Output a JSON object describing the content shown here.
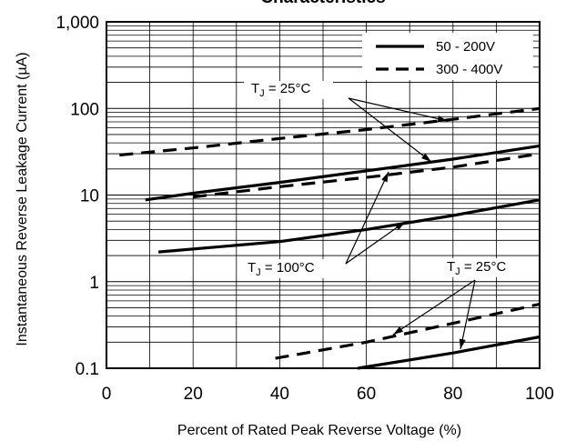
{
  "chart_data": {
    "type": "line",
    "title": "Characteristics",
    "xlabel": "Percent of Rated Peak Reverse Voltage (%)",
    "ylabel": "Instantaneous Reverse Leakage Current (µA)",
    "xlim": [
      0,
      100
    ],
    "ylim": [
      0.1,
      1000
    ],
    "yscale": "log",
    "grid": true,
    "x_ticks": [
      0,
      20,
      40,
      60,
      80,
      100
    ],
    "x_tick_labels": [
      "0",
      "20",
      "40",
      "60",
      "80",
      "100"
    ],
    "y_ticks": [
      0.1,
      1,
      10,
      100,
      1000
    ],
    "y_tick_labels": [
      "0.1",
      "1",
      "10",
      "100",
      "1,000"
    ],
    "legend": {
      "placement": "top-right",
      "entries": [
        {
          "label": "50 - 200V",
          "style": "solid"
        },
        {
          "label": "300 - 400V",
          "style": "dashed"
        }
      ]
    },
    "series": [
      {
        "name": "50 - 200V",
        "style": "solid",
        "group": "TJ = 100°C",
        "x": [
          9,
          20,
          40,
          60,
          80,
          100
        ],
        "y": [
          8.8,
          10.5,
          14,
          19,
          26,
          37
        ]
      },
      {
        "name": "300 - 400V",
        "style": "dashed",
        "group": "TJ = 100°C",
        "x": [
          3,
          20,
          40,
          60,
          80,
          100
        ],
        "y": [
          29,
          35,
          45,
          57,
          75,
          100
        ]
      },
      {
        "name": "300 - 400V",
        "style": "dashed",
        "group": "TJ = 100°C",
        "x": [
          20,
          40,
          60,
          80,
          100
        ],
        "y": [
          9.5,
          12.5,
          16,
          21,
          30
        ]
      },
      {
        "name": "50 - 200V",
        "style": "solid",
        "group": "TJ = 100°C",
        "x": [
          12,
          40,
          60,
          80,
          100
        ],
        "y": [
          2.2,
          2.9,
          4.0,
          5.8,
          8.8
        ]
      },
      {
        "name": "300 - 400V",
        "style": "dashed",
        "group": "TJ = 25°C",
        "x": [
          39,
          60,
          80,
          100
        ],
        "y": [
          0.13,
          0.2,
          0.33,
          0.55
        ]
      },
      {
        "name": "50 - 200V",
        "style": "solid",
        "group": "TJ = 25°C",
        "x": [
          58,
          80,
          100
        ],
        "y": [
          0.1,
          0.15,
          0.23
        ]
      }
    ],
    "annotations": [
      {
        "text_main": "T",
        "text_sub": "J",
        "text_rest": " = 25°C"
      },
      {
        "text_main": "T",
        "text_sub": "J",
        "text_rest": " = 100°C"
      },
      {
        "text_main": "T",
        "text_sub": "J",
        "text_rest": " = 25°C"
      }
    ]
  }
}
